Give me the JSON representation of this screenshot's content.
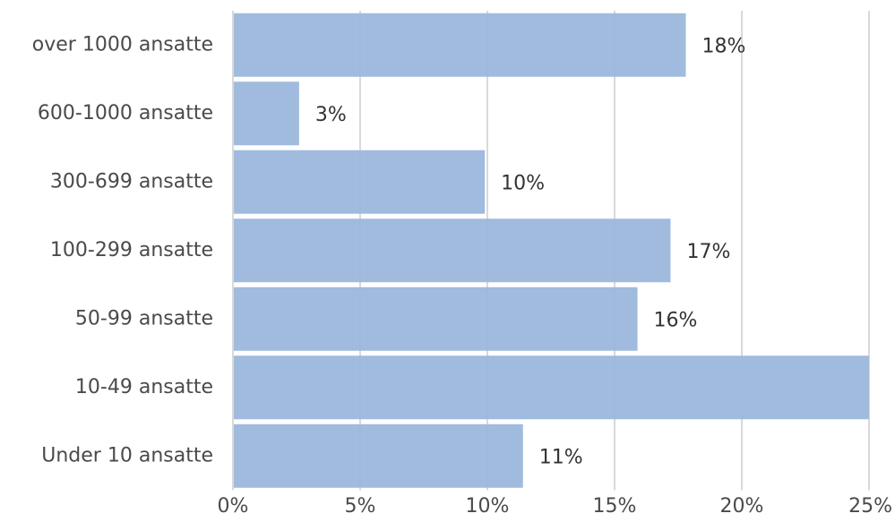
{
  "colors": {
    "bar": "#9bb7dc",
    "grid": "#d9d9d9",
    "text": "#4a4a4a"
  },
  "chart_data": {
    "type": "bar",
    "orientation": "horizontal",
    "title": "",
    "xlabel": "",
    "ylabel": "",
    "categories": [
      "over 1000 ansatte",
      "600-1000 ansatte",
      "300-699 ansatte",
      "100-299 ansatte",
      "50-99 ansatte",
      "10-49 ansatte",
      "Under 10 ansatte"
    ],
    "values": [
      17.8,
      2.6,
      9.9,
      17.2,
      15.9,
      25.0,
      11.4
    ],
    "data_labels": [
      "18%",
      "3%",
      "10%",
      "17%",
      "16%",
      "",
      "11%"
    ],
    "xlim": [
      0,
      25
    ],
    "xticks": [
      0,
      5,
      10,
      15,
      20,
      25
    ],
    "xtick_labels": [
      "0%",
      "5%",
      "10%",
      "15%",
      "20%",
      "25%"
    ],
    "grid": "vertical",
    "legend": "none"
  }
}
